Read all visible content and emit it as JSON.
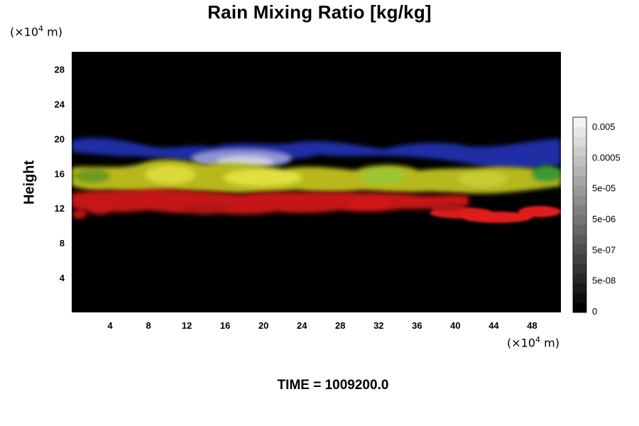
{
  "chart_data": {
    "type": "heatmap",
    "title": "Rain Mixing Ratio [kg/kg]",
    "ylabel": "Height",
    "y_unit": {
      "prefix": "(×10",
      "exp": "4",
      "suffix": " m)"
    },
    "x_unit": {
      "prefix": "(×10",
      "exp": "4",
      "suffix": " m)"
    },
    "xlim": [
      0,
      51
    ],
    "ylim": [
      0,
      30
    ],
    "x_ticks": [
      "4",
      "8",
      "12",
      "16",
      "20",
      "24",
      "28",
      "32",
      "36",
      "40",
      "44",
      "48"
    ],
    "y_ticks": [
      "4",
      "8",
      "12",
      "16",
      "20",
      "24",
      "28"
    ],
    "colorbar": {
      "labels": [
        "0.005",
        "0.0005",
        "5e-05",
        "5e-06",
        "5e-07",
        "5e-08",
        "0"
      ],
      "colors": [
        "#000000",
        "#f4f4f4"
      ]
    },
    "background_color": "#000000",
    "layers": [
      {
        "color": "#2a34c8",
        "y_range": [
          17.5,
          20
        ]
      },
      {
        "color": "#c4c41c",
        "y_range": [
          13.5,
          17.5
        ]
      },
      {
        "color": "#d81616",
        "y_range": [
          10,
          14
        ]
      }
    ]
  },
  "time_label": "TIME = 1009200.0"
}
